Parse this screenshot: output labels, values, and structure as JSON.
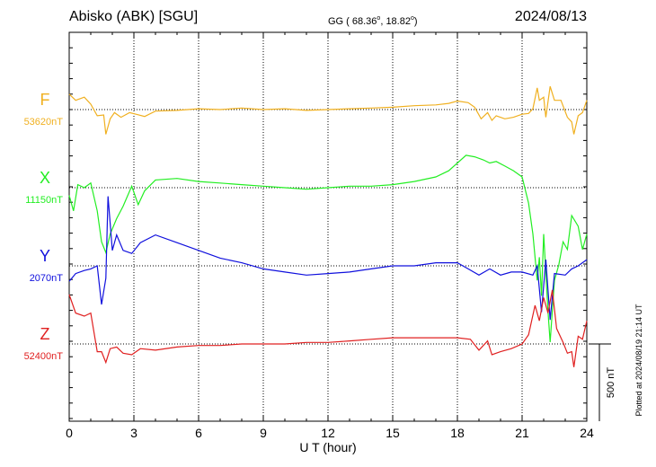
{
  "header": {
    "station": "Abisko (ABK)  [SGU]",
    "coords_prefix": "GG ( 68.36",
    "coords_mid": ",  18.82",
    "coords_suffix": ")",
    "degree_mark": "o",
    "date": "2024/08/13"
  },
  "footer": {
    "plotted": "Plotted at 2024/08/19 21:14 UT"
  },
  "chart_data": {
    "type": "line",
    "xlabel": "U T (hour)",
    "xlim": [
      0,
      24
    ],
    "xticks": [
      0,
      3,
      6,
      9,
      12,
      15,
      18,
      21,
      24
    ],
    "grid": true,
    "scale_bar_label": "500 nT",
    "scale_bar_nT": 500,
    "panel_range_nT": 1000,
    "series": [
      {
        "name": "F",
        "baseline_label": "53620nT",
        "color": "#f0b020",
        "points": [
          [
            0,
            100
          ],
          [
            0.3,
            60
          ],
          [
            0.7,
            80
          ],
          [
            1.0,
            35
          ],
          [
            1.3,
            -40
          ],
          [
            1.6,
            -35
          ],
          [
            1.7,
            -160
          ],
          [
            1.9,
            -60
          ],
          [
            2.1,
            -20
          ],
          [
            2.4,
            -50
          ],
          [
            2.8,
            -20
          ],
          [
            3.1,
            -30
          ],
          [
            3.5,
            -45
          ],
          [
            4,
            -10
          ],
          [
            5,
            -5
          ],
          [
            6,
            5
          ],
          [
            7,
            0
          ],
          [
            8,
            10
          ],
          [
            9,
            0
          ],
          [
            10,
            5
          ],
          [
            11,
            -5
          ],
          [
            12,
            0
          ],
          [
            13,
            5
          ],
          [
            14,
            10
          ],
          [
            15,
            15
          ],
          [
            16,
            25
          ],
          [
            17,
            30
          ],
          [
            17.6,
            40
          ],
          [
            18,
            55
          ],
          [
            18.5,
            45
          ],
          [
            18.8,
            15
          ],
          [
            19.1,
            -60
          ],
          [
            19.4,
            -20
          ],
          [
            19.6,
            -70
          ],
          [
            19.8,
            -40
          ],
          [
            20.2,
            -60
          ],
          [
            20.6,
            -50
          ],
          [
            21,
            -30
          ],
          [
            21.3,
            -25
          ],
          [
            21.5,
            5
          ],
          [
            21.7,
            140
          ],
          [
            21.8,
            60
          ],
          [
            22,
            80
          ],
          [
            22.1,
            -50
          ],
          [
            22.3,
            150
          ],
          [
            22.5,
            60
          ],
          [
            22.8,
            60
          ],
          [
            23.1,
            -50
          ],
          [
            23.3,
            -80
          ],
          [
            23.4,
            -160
          ],
          [
            23.6,
            -40
          ],
          [
            23.8,
            -20
          ],
          [
            24,
            60
          ]
        ]
      },
      {
        "name": "X",
        "baseline_label": "11150nT",
        "color": "#22ee22",
        "points": [
          [
            0,
            -50
          ],
          [
            0.2,
            -150
          ],
          [
            0.4,
            20
          ],
          [
            0.7,
            0
          ],
          [
            1.0,
            30
          ],
          [
            1.3,
            -150
          ],
          [
            1.5,
            -350
          ],
          [
            1.7,
            -420
          ],
          [
            1.9,
            -300
          ],
          [
            2.2,
            -200
          ],
          [
            2.5,
            -120
          ],
          [
            2.9,
            10
          ],
          [
            3.2,
            -110
          ],
          [
            3.5,
            -20
          ],
          [
            4,
            50
          ],
          [
            5,
            60
          ],
          [
            6,
            40
          ],
          [
            7,
            30
          ],
          [
            8,
            20
          ],
          [
            9,
            10
          ],
          [
            10,
            0
          ],
          [
            11,
            -10
          ],
          [
            12,
            0
          ],
          [
            13,
            10
          ],
          [
            14,
            10
          ],
          [
            15,
            20
          ],
          [
            16,
            40
          ],
          [
            17,
            70
          ],
          [
            17.6,
            110
          ],
          [
            18,
            160
          ],
          [
            18.4,
            210
          ],
          [
            18.8,
            200
          ],
          [
            19.2,
            180
          ],
          [
            19.5,
            160
          ],
          [
            19.8,
            170
          ],
          [
            20.2,
            140
          ],
          [
            20.6,
            110
          ],
          [
            21,
            70
          ],
          [
            21.3,
            -100
          ],
          [
            21.5,
            -300
          ],
          [
            21.7,
            -600
          ],
          [
            21.8,
            -450
          ],
          [
            21.9,
            -700
          ],
          [
            22,
            -300
          ],
          [
            22.2,
            -800
          ],
          [
            22.3,
            -1000
          ],
          [
            22.5,
            -600
          ],
          [
            22.7,
            -500
          ],
          [
            22.9,
            -350
          ],
          [
            23.1,
            -400
          ],
          [
            23.3,
            -180
          ],
          [
            23.6,
            -250
          ],
          [
            23.8,
            -400
          ],
          [
            24,
            -300
          ]
        ]
      },
      {
        "name": "Y",
        "baseline_label": "2070nT",
        "color": "#1010dd",
        "points": [
          [
            0,
            -100
          ],
          [
            0.3,
            -50
          ],
          [
            0.7,
            -30
          ],
          [
            1.0,
            -20
          ],
          [
            1.3,
            0
          ],
          [
            1.5,
            -250
          ],
          [
            1.7,
            -80
          ],
          [
            1.8,
            450
          ],
          [
            2.0,
            100
          ],
          [
            2.2,
            200
          ],
          [
            2.5,
            100
          ],
          [
            2.9,
            80
          ],
          [
            3.3,
            150
          ],
          [
            4,
            200
          ],
          [
            5,
            150
          ],
          [
            6,
            100
          ],
          [
            7,
            50
          ],
          [
            8,
            20
          ],
          [
            9,
            -20
          ],
          [
            10,
            -40
          ],
          [
            11,
            -60
          ],
          [
            12,
            -50
          ],
          [
            13,
            -40
          ],
          [
            14,
            -20
          ],
          [
            15,
            0
          ],
          [
            16,
            0
          ],
          [
            17,
            20
          ],
          [
            18,
            20
          ],
          [
            18.5,
            -20
          ],
          [
            19,
            -60
          ],
          [
            19.5,
            -20
          ],
          [
            20,
            -60
          ],
          [
            20.5,
            -40
          ],
          [
            21,
            -40
          ],
          [
            21.5,
            -60
          ],
          [
            21.7,
            0
          ],
          [
            21.9,
            -300
          ],
          [
            22.1,
            40
          ],
          [
            22.3,
            -350
          ],
          [
            22.5,
            -50
          ],
          [
            23,
            -60
          ],
          [
            23.3,
            -20
          ],
          [
            23.6,
            0
          ],
          [
            24,
            40
          ]
        ]
      },
      {
        "name": "Z",
        "baseline_label": "52400nT",
        "color": "#e02020",
        "points": [
          [
            0,
            320
          ],
          [
            0.3,
            200
          ],
          [
            0.7,
            180
          ],
          [
            1.0,
            200
          ],
          [
            1.3,
            -50
          ],
          [
            1.5,
            -50
          ],
          [
            1.7,
            -120
          ],
          [
            1.9,
            -30
          ],
          [
            2.2,
            -20
          ],
          [
            2.5,
            -60
          ],
          [
            2.9,
            -70
          ],
          [
            3.3,
            -30
          ],
          [
            4,
            -40
          ],
          [
            5,
            -20
          ],
          [
            6,
            -10
          ],
          [
            7,
            -10
          ],
          [
            8,
            0
          ],
          [
            9,
            0
          ],
          [
            10,
            0
          ],
          [
            11,
            10
          ],
          [
            12,
            10
          ],
          [
            13,
            20
          ],
          [
            14,
            30
          ],
          [
            15,
            40
          ],
          [
            16,
            40
          ],
          [
            17,
            40
          ],
          [
            18,
            40
          ],
          [
            18.6,
            30
          ],
          [
            19,
            -40
          ],
          [
            19.4,
            20
          ],
          [
            19.6,
            -70
          ],
          [
            20,
            -50
          ],
          [
            20.5,
            -30
          ],
          [
            21,
            0
          ],
          [
            21.3,
            60
          ],
          [
            21.6,
            250
          ],
          [
            21.8,
            150
          ],
          [
            22.0,
            300
          ],
          [
            22.2,
            200
          ],
          [
            22.4,
            350
          ],
          [
            22.6,
            100
          ],
          [
            22.9,
            10
          ],
          [
            23.1,
            -60
          ],
          [
            23.3,
            -50
          ],
          [
            23.4,
            -150
          ],
          [
            23.6,
            50
          ],
          [
            23.8,
            30
          ],
          [
            24,
            150
          ]
        ]
      }
    ]
  }
}
